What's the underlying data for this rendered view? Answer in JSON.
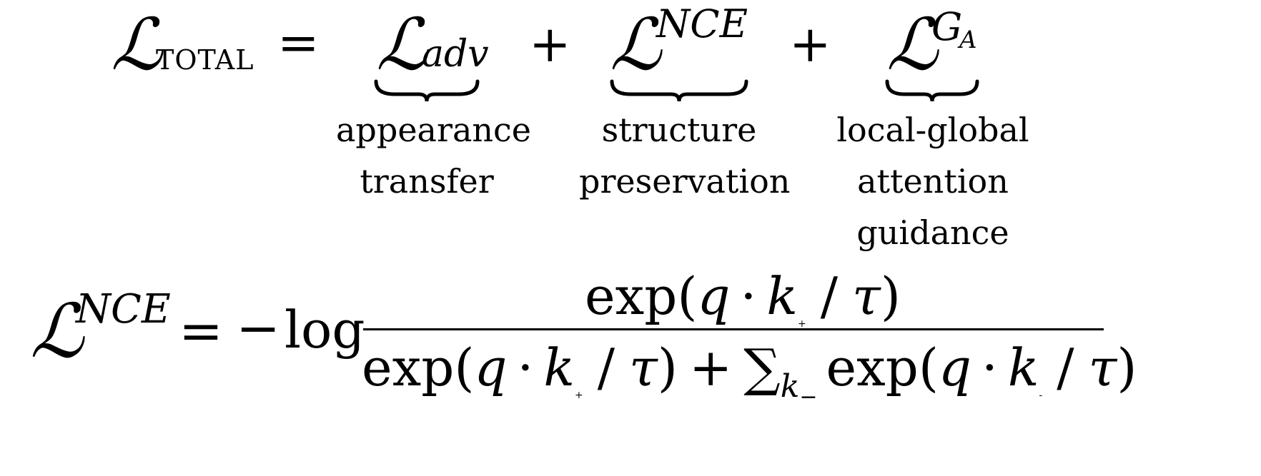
{
  "line1": {
    "total": {
      "symbol": "ℒ",
      "subscript": "TOTAL"
    },
    "equals": "=",
    "terms": [
      {
        "symbol": "ℒ",
        "subscript": "adv",
        "label_lines": [
          "appearance",
          "transfer"
        ]
      },
      {
        "symbol": "ℒ",
        "superscript": "NCE",
        "label_lines": [
          "structure",
          "preservation"
        ]
      },
      {
        "symbol": "ℒ",
        "superscript_main": "G",
        "superscript_sub": "A",
        "label_lines": [
          "local-global",
          "attention",
          "guidance"
        ]
      }
    ],
    "plus": "+"
  },
  "line2": {
    "lhs_symbol": "ℒ",
    "lhs_superscript": "NCE",
    "equals": "=",
    "minus": "−",
    "log": "log",
    "numerator": {
      "exp": "exp",
      "open": "(",
      "q": "q",
      "dot": "·",
      "k": "k",
      "k_sub": "+",
      "slash": "/",
      "tau": "τ",
      "close": ")"
    },
    "denominator": {
      "exp": "exp",
      "open": "(",
      "q": "q",
      "dot": "·",
      "k": "k",
      "k_sub": "+",
      "slash": "/",
      "tau": "τ",
      "close": ")",
      "plus": "+",
      "sum": "∑",
      "sum_sub_k": "k",
      "sum_sub_minus": "−",
      "exp2": "exp",
      "open2": "(",
      "q2": "q",
      "dot2": "·",
      "k2": "k",
      "k2_sub": "-",
      "slash2": "/",
      "tau2": "τ",
      "close2": ")"
    }
  }
}
